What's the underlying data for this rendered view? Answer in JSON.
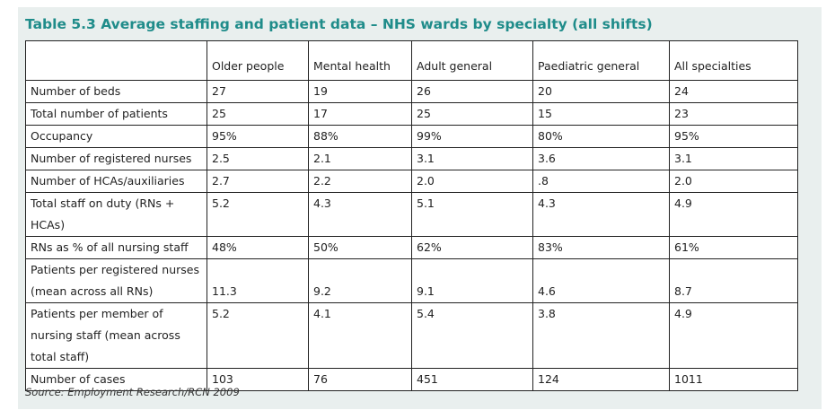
{
  "title": "Table 5.3 Average staffing and patient data – NHS wards by specialty (all shifts)",
  "table": {
    "header": [
      "Older people",
      "Mental health",
      "Adult general",
      "Paediatric general",
      "All specialties"
    ],
    "rows": [
      {
        "label": "Number of beds",
        "values": [
          "27",
          "19",
          "26",
          "20",
          "24"
        ]
      },
      {
        "label": "Total number of patients",
        "values": [
          "25",
          "17",
          "25",
          "15",
          "23"
        ]
      },
      {
        "label": "Occupancy",
        "values": [
          "95%",
          "88%",
          "99%",
          "80%",
          "95%"
        ]
      },
      {
        "label": "Number of registered nurses",
        "values": [
          "2.5",
          "2.1",
          "3.1",
          "3.6",
          "3.1"
        ]
      },
      {
        "label": "Number of HCAs/auxiliaries",
        "values": [
          "2.7",
          "2.2",
          "2.0",
          ".8",
          "2.0"
        ]
      },
      {
        "label": "Total staff on duty (RNs + HCAs)",
        "values": [
          "5.2",
          "4.3",
          "5.1",
          "4.3",
          "4.9"
        ]
      },
      {
        "label": "RNs as % of all nursing staff",
        "values": [
          "48%",
          "50%",
          "62%",
          "83%",
          "61%"
        ]
      },
      {
        "label": "Patients per registered nurses (mean across all RNs)",
        "values": [
          "11.3",
          "9.2",
          "9.1",
          "4.6",
          "8.7"
        ]
      },
      {
        "label": "Patients per member of nursing staff (mean across total staff)",
        "values": [
          "5.2",
          "4.1",
          "5.4",
          "3.8",
          "4.9"
        ]
      },
      {
        "label": "Number of cases",
        "values": [
          "103",
          "76",
          "451",
          "124",
          "1011"
        ]
      }
    ]
  },
  "source": "Source: Employment Research/RCN 2009"
}
